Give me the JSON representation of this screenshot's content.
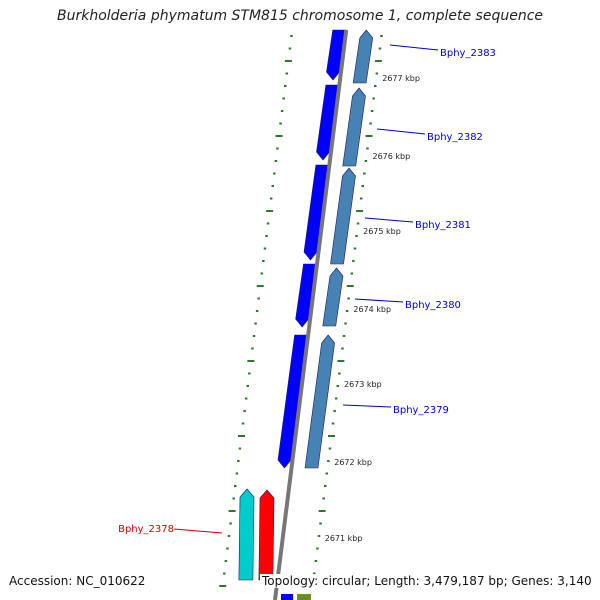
{
  "title": "Burkholderia phymatum STM815 chromosome 1, complete sequence",
  "footer": {
    "accession": "Accession: NC_010622",
    "topology": "Topology: circular; Length: 3,479,187 bp; Genes: 3,140"
  },
  "colors": {
    "forward_gene": "#0000ff",
    "reverse_gene": "#4682b4",
    "highlight_forward": "#ff0000",
    "highlight_reverse": "#00cccc",
    "axis": "#777777",
    "tick": "#2a7a2a",
    "label": "#0000cc",
    "highlight_label": "#cc0000"
  },
  "scale_labels": [
    "2677 kbp",
    "2676 kbp",
    "2675 kbp",
    "2674 kbp",
    "2673 kbp",
    "2672 kbp",
    "2671 kbp"
  ],
  "gene_labels": [
    {
      "name": "Bphy_2383",
      "highlight": false
    },
    {
      "name": "Bphy_2382",
      "highlight": false
    },
    {
      "name": "Bphy_2381",
      "highlight": false
    },
    {
      "name": "Bphy_2380",
      "highlight": false
    },
    {
      "name": "Bphy_2379",
      "highlight": false
    },
    {
      "name": "Bphy_2378",
      "highlight": true
    }
  ]
}
